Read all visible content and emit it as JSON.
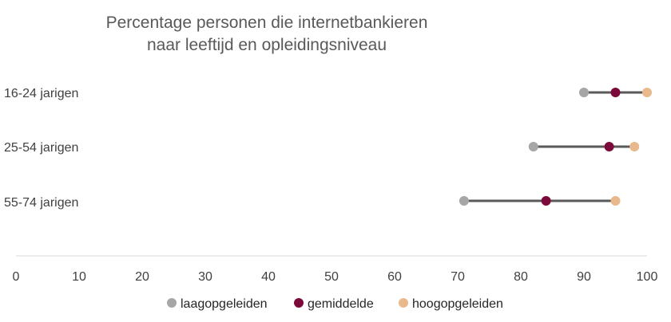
{
  "chart_data": {
    "type": "scatter",
    "subtype": "dumbbell",
    "title_lines": [
      "Percentage personen die internetbankieren",
      "naar leeftijd en opleidingsniveau"
    ],
    "categories": [
      "16-24 jarigen",
      "25-54 jarigen",
      "55-74 jarigen"
    ],
    "series": [
      {
        "name": "laagopgeleiden",
        "color": "#a6a6a6",
        "values": [
          90,
          82,
          71
        ]
      },
      {
        "name": "gemiddelde",
        "color": "#7b0a3a",
        "values": [
          95,
          94,
          84
        ]
      },
      {
        "name": "hoogopgeleiden",
        "color": "#e8b98c",
        "values": [
          100,
          98,
          95
        ]
      }
    ],
    "connector_color": "#595959",
    "xlim": [
      0,
      100
    ],
    "xticks": [
      "0",
      "10",
      "20",
      "30",
      "40",
      "50",
      "60",
      "70",
      "80",
      "90",
      "100"
    ],
    "xlabel": "",
    "ylabel": "",
    "grid": false,
    "legend_position": "bottom"
  }
}
